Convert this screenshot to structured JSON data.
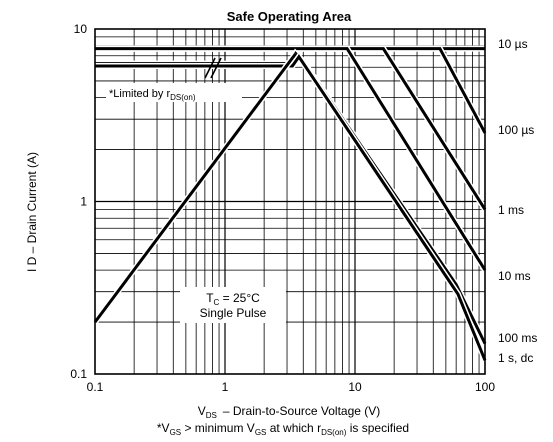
{
  "chart_data": {
    "type": "line",
    "title": "Safe Operating Area",
    "xlabel_main": "V",
    "xlabel_sub": "DS",
    "xlabel_rest": "– Drain-to-Source Voltage (V)",
    "ylabel": "I D – Drain Current (A)",
    "footnote": {
      "p1": "*V",
      "s1": "GS",
      "p2": " > minimum V",
      "s2": "GS",
      "p3": " at which r",
      "s3": "DS(on)",
      "p4": " is specified"
    },
    "xscale": "log",
    "yscale": "log",
    "xlim": [
      0.1,
      100
    ],
    "ylim": [
      0.1,
      10
    ],
    "grid": true,
    "x_ticks": [
      {
        "value": 0.1,
        "label": "0.1"
      },
      {
        "value": 1,
        "label": "1"
      },
      {
        "value": 10,
        "label": "10"
      },
      {
        "value": 100,
        "label": "100"
      }
    ],
    "y_ticks": [
      {
        "value": 0.1,
        "label": "0.1"
      },
      {
        "value": 1,
        "label": "1"
      },
      {
        "value": 10,
        "label": "10"
      }
    ],
    "annotations": {
      "limited_by_prefix": "*Limited by r",
      "limited_by_sub": "DS(on)",
      "tc_prefix": "T",
      "tc_sub": "C",
      "tc_suffix": " = 25°C",
      "single_pulse": "Single Pulse"
    },
    "series": [
      {
        "name": "10 µs",
        "points": [
          [
            0.1,
            7.7
          ],
          [
            100,
            7.7
          ]
        ]
      },
      {
        "name": "100 µs",
        "points": [
          [
            0.1,
            7.7
          ],
          [
            45,
            7.7
          ],
          [
            100,
            2.5
          ]
        ]
      },
      {
        "name": "1 ms",
        "points": [
          [
            0.1,
            7.7
          ],
          [
            16.5,
            7.7
          ],
          [
            100,
            0.9
          ]
        ]
      },
      {
        "name": "10 ms",
        "points": [
          [
            0.1,
            7.7
          ],
          [
            8.7,
            7.7
          ],
          [
            100,
            0.4
          ]
        ]
      },
      {
        "name": "100 ms",
        "points": [
          [
            0.1,
            6.3
          ],
          [
            3.2,
            6.3
          ],
          [
            3.5,
            7.2
          ],
          [
            4.0,
            6.5
          ],
          [
            60,
            0.33
          ],
          [
            100,
            0.15
          ]
        ]
      },
      {
        "name": "1 s, dc",
        "points": [
          [
            0.1,
            6.1
          ],
          [
            3.3,
            6.1
          ],
          [
            3.7,
            6.9
          ],
          [
            4.2,
            6.0
          ],
          [
            62,
            0.29
          ],
          [
            100,
            0.12
          ]
        ]
      },
      {
        "name": "rds_limit",
        "points": [
          [
            0.1,
            0.2
          ],
          [
            3.5,
            7.2
          ]
        ]
      }
    ]
  }
}
